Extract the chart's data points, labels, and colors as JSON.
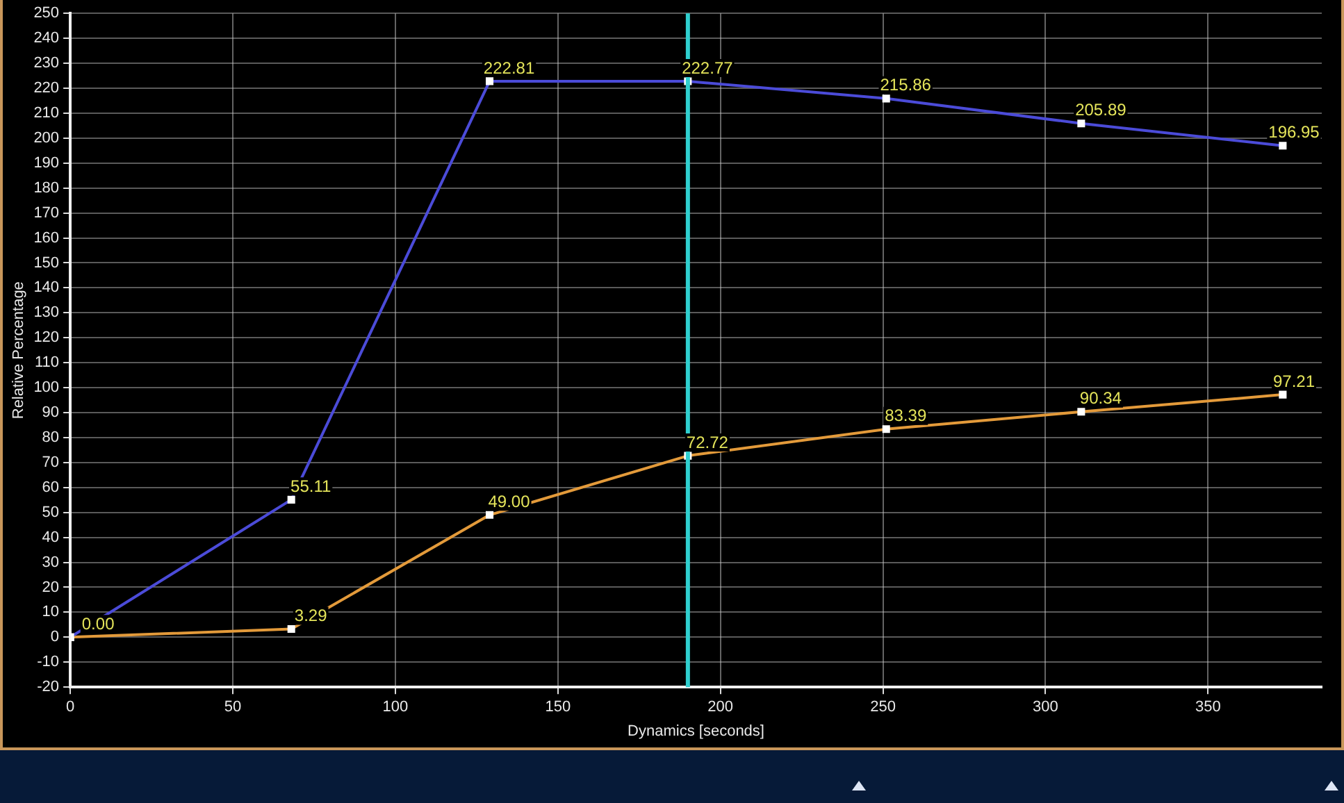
{
  "chart_data": {
    "type": "line",
    "xlabel": "Dynamics [seconds]",
    "ylabel": "Relative Percentage",
    "xlim": [
      0,
      385
    ],
    "xticks": [
      0,
      50,
      100,
      150,
      200,
      250,
      300,
      350
    ],
    "ylim": [
      -20,
      250
    ],
    "yticks": [
      -20,
      -10,
      0,
      10,
      20,
      30,
      40,
      50,
      60,
      70,
      80,
      90,
      100,
      110,
      120,
      130,
      140,
      150,
      160,
      170,
      180,
      190,
      200,
      210,
      220,
      230,
      240,
      250
    ],
    "grid": true,
    "legend": false,
    "marker": "square",
    "line_style": "solid",
    "x": [
      0,
      68,
      129,
      190,
      251,
      311,
      373
    ],
    "series": [
      {
        "color": "#4b4bd8",
        "values": [
          0,
          55.11,
          222.81,
          222.77,
          215.86,
          205.89,
          196.95
        ],
        "value_labels": [
          null,
          "55.11",
          "222.81",
          "222.77",
          "215.86",
          "205.89",
          "196.95"
        ]
      },
      {
        "color": "#e39a3a",
        "values": [
          0,
          3.29,
          49.0,
          72.72,
          83.39,
          90.34,
          97.21
        ],
        "value_labels": [
          "0.00",
          "3.29",
          "49.00",
          "72.72",
          "83.39",
          "90.34",
          "97.21"
        ]
      }
    ],
    "ref_lines": [
      {
        "axis": "x",
        "value": 190,
        "color": "#2fd0d0"
      }
    ]
  }
}
